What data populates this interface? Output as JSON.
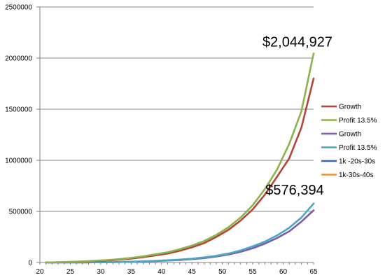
{
  "chart_data": {
    "type": "line",
    "title": "",
    "xlabel": "",
    "ylabel": "",
    "xlim": [
      20,
      65
    ],
    "ylim": [
      0,
      2500000
    ],
    "grid": "horizontal",
    "legend_position": "right",
    "x_ticks": [
      "20",
      "25",
      "30",
      "35",
      "40",
      "45",
      "50",
      "55",
      "60",
      "65"
    ],
    "y_ticks": [
      "0",
      "500000",
      "1000000",
      "1500000",
      "2000000",
      "2500000"
    ],
    "series": [
      {
        "name": "Growth",
        "color": "#B5443A",
        "x": [
          21,
          23,
          25,
          27,
          29,
          31,
          33,
          35,
          37,
          39,
          41,
          43,
          45,
          47,
          49,
          51,
          53,
          55,
          57,
          59,
          61,
          63,
          65
        ],
        "y": [
          0,
          2000,
          5000,
          9000,
          14000,
          20000,
          28000,
          38000,
          52000,
          70000,
          88000,
          115000,
          148000,
          190000,
          250000,
          320000,
          410000,
          520000,
          665000,
          840000,
          1020000,
          1320000,
          1800000
        ]
      },
      {
        "name": "Profit 13.5%",
        "color": "#8DB24C",
        "x": [
          21,
          23,
          25,
          27,
          29,
          31,
          33,
          35,
          37,
          39,
          41,
          43,
          45,
          47,
          49,
          51,
          53,
          55,
          57,
          59,
          61,
          63,
          65
        ],
        "y": [
          0,
          3000,
          6000,
          11000,
          17000,
          24000,
          33000,
          45000,
          60000,
          80000,
          100000,
          130000,
          165000,
          210000,
          270000,
          345000,
          440000,
          560000,
          720000,
          910000,
          1160000,
          1480000,
          2044927
        ]
      },
      {
        "name": "Growth",
        "color": "#7D5BA6",
        "x": [
          21,
          23,
          25,
          27,
          29,
          31,
          33,
          35,
          37,
          39,
          41,
          43,
          45,
          47,
          49,
          51,
          53,
          55,
          57,
          59,
          61,
          63,
          65
        ],
        "y": [
          0,
          0,
          500,
          1000,
          2000,
          3000,
          5000,
          7000,
          10000,
          14000,
          19000,
          25000,
          33000,
          43000,
          58000,
          78000,
          105000,
          140000,
          185000,
          240000,
          305000,
          400000,
          510000
        ]
      },
      {
        "name": "Profit 13.5%",
        "color": "#4BA6C5",
        "x": [
          21,
          23,
          25,
          27,
          29,
          31,
          33,
          35,
          37,
          39,
          41,
          43,
          45,
          47,
          49,
          51,
          53,
          55,
          57,
          59,
          61,
          63,
          65
        ],
        "y": [
          0,
          0,
          500,
          1000,
          2000,
          3500,
          5500,
          8000,
          11500,
          16000,
          22000,
          29000,
          38000,
          50000,
          66000,
          88000,
          118000,
          158000,
          205000,
          265000,
          340000,
          440000,
          576394
        ]
      },
      {
        "name": "1k -20s-30s",
        "color": "#3F66A8",
        "x": [],
        "y": []
      },
      {
        "name": "1k-30s-40s",
        "color": "#E8923A",
        "x": [],
        "y": []
      }
    ],
    "annotations": [
      {
        "text": "$2,044,927",
        "x": 65,
        "y": 2044927
      },
      {
        "text": "$576,394",
        "x": 65,
        "y": 576394
      }
    ]
  }
}
